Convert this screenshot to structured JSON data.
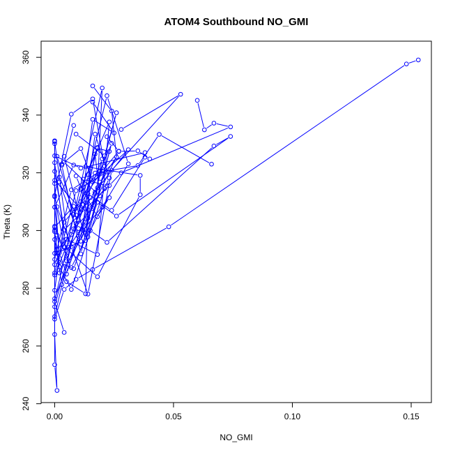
{
  "chart_data": {
    "type": "line",
    "title": "ATOM4 Southbound NO_GMI",
    "xlabel": "NO_GMI",
    "ylabel": "Theta (K)",
    "xlim": [
      -0.0057,
      0.1585
    ],
    "ylim": [
      240.4,
      365.6
    ],
    "xticks": [
      0.0,
      0.05,
      0.1,
      0.15
    ],
    "xtick_labels": [
      "0.00",
      "0.05",
      "0.10",
      "0.15"
    ],
    "yticks": [
      240,
      260,
      280,
      300,
      320,
      340,
      360
    ],
    "ytick_labels": [
      "240",
      "260",
      "280",
      "300",
      "320",
      "340",
      "360"
    ],
    "grid": false,
    "legend": "none",
    "series_color": "#0000ff",
    "marker": "open-circle",
    "series": [
      {
        "x": [
          0.153,
          0.148,
          0.048,
          0.016,
          0.009,
          0.004,
          0.0,
          0.0,
          0.001,
          0.0,
          0.0
        ],
        "y": [
          359.1,
          357.7,
          301.3,
          286.5,
          283.1,
          279.6,
          269.3,
          253.5,
          244.6,
          264.0,
          301.5
        ]
      },
      {
        "x": [
          0.0,
          0.004,
          0.013,
          0.023,
          0.028,
          0.074,
          0.067,
          0.063,
          0.06
        ],
        "y": [
          320.5,
          300.2,
          307.5,
          315.6,
          320.0,
          335.9,
          337.2,
          334.9,
          345.1
        ]
      },
      {
        "x": [
          0.0,
          0.0,
          0.001,
          0.006,
          0.013,
          0.018,
          0.02,
          0.0,
          0.004
        ],
        "y": [
          330.1,
          292.1,
          298.4,
          289.5,
          300.3,
          314.8,
          349.4,
          275.4,
          264.7
        ]
      },
      {
        "x": [
          0.0,
          0.002,
          0.008,
          0.018,
          0.026,
          0.074,
          0.067,
          0.022,
          0.015
        ],
        "y": [
          316.3,
          288.9,
          286.8,
          309.8,
          305.0,
          332.6,
          329.3,
          295.9,
          300.0
        ]
      },
      {
        "x": [
          0.0,
          0.0,
          0.004,
          0.011,
          0.017,
          0.035,
          0.044,
          0.066
        ],
        "y": [
          331.1,
          279.3,
          302.9,
          310.0,
          319.9,
          322.5,
          333.3,
          323.0
        ]
      },
      {
        "x": [
          0.001,
          0.007,
          0.014,
          0.024,
          0.053,
          0.028
        ],
        "y": [
          308.2,
          294.4,
          278.0,
          320.9,
          347.2,
          335.0
        ]
      },
      {
        "x": [
          0.0,
          0.004,
          0.018,
          0.036,
          0.036,
          0.013,
          0.008,
          0.0
        ],
        "y": [
          311.7,
          294.4,
          284.0,
          312.4,
          319.1,
          322.1,
          322.7,
          308.1
        ]
      },
      {
        "x": [
          0.0,
          0.011,
          0.038,
          0.038,
          0.024,
          0.014,
          0.013,
          0.005
        ],
        "y": [
          325.9,
          321.6,
          327.0,
          325.4,
          307.0,
          312.7,
          278.1,
          282.3
        ]
      },
      {
        "x": [
          0.0,
          0.002,
          0.007,
          0.021,
          0.023,
          0.017,
          0.011,
          0.001
        ],
        "y": [
          299.6,
          287.4,
          279.6,
          314.5,
          318.2,
          333.4,
          296.3,
          292.1
        ]
      },
      {
        "x": [
          0.0,
          0.003,
          0.013,
          0.027,
          0.035,
          0.04
        ],
        "y": [
          296.9,
          281.3,
          302.9,
          327.4,
          327.6,
          324.8
        ]
      },
      {
        "x": [
          0.0,
          0.002,
          0.005,
          0.015,
          0.031,
          0.016,
          0.011,
          0.003
        ],
        "y": [
          308.1,
          292.3,
          284.9,
          311.4,
          328.0,
          316.9,
          328.4,
          323.0
        ]
      },
      {
        "x": [
          0.002,
          0.011,
          0.019,
          0.026,
          0.024,
          0.016
        ],
        "y": [
          316.8,
          296.3,
          316.8,
          325.5,
          341.4,
          350.1
        ]
      },
      {
        "x": [
          0.0,
          0.004,
          0.012,
          0.02,
          0.027,
          0.022
        ],
        "y": [
          300.1,
          294.3,
          315.1,
          320.6,
          327.5,
          332.5
        ]
      },
      {
        "x": [
          0.0,
          0.008,
          0.01,
          0.014,
          0.023,
          0.018
        ],
        "y": [
          301.1,
          308.4,
          300.7,
          297.8,
          327.4,
          328.5
        ]
      },
      {
        "x": [
          0.0,
          0.005,
          0.007,
          0.02,
          0.031,
          0.022,
          0.014
        ],
        "y": [
          323.5,
          291.2,
          287.2,
          308.1,
          323.1,
          346.7,
          319.4
        ]
      },
      {
        "x": [
          0.0,
          0.005,
          0.018,
          0.023,
          0.011,
          0.009
        ],
        "y": [
          288.2,
          297.0,
          291.7,
          337.6,
          314.7,
          318.9
        ]
      },
      {
        "x": [
          0.001,
          0.008,
          0.021,
          0.016,
          0.007,
          0.0
        ],
        "y": [
          325.7,
          305.6,
          322.3,
          345.6,
          340.3,
          312.1
        ]
      },
      {
        "x": [
          0.002,
          0.009,
          0.017,
          0.026,
          0.021,
          0.009
        ],
        "y": [
          318.5,
          305.4,
          312.8,
          340.8,
          325.9,
          333.4
        ]
      },
      {
        "x": [
          0.003,
          0.011,
          0.017,
          0.022,
          0.009,
          0.0
        ],
        "y": [
          322.6,
          291.9,
          313.3,
          320.3,
          313.8,
          285.3
        ]
      },
      {
        "x": [
          0.0,
          0.007,
          0.019,
          0.024,
          0.013,
          0.004
        ],
        "y": [
          290.0,
          314.1,
          320.5,
          330.2,
          296.5,
          325.7
        ]
      },
      {
        "x": [
          0.0,
          0.009,
          0.012,
          0.018,
          0.023,
          0.012
        ],
        "y": [
          270.2,
          302.4,
          313.6,
          304.8,
          311.4,
          300.1
        ]
      },
      {
        "x": [
          0.002,
          0.013,
          0.017,
          0.019,
          0.004,
          0.008
        ],
        "y": [
          285.3,
          309.6,
          326.5,
          312.0,
          323.7,
          336.4
        ]
      },
      {
        "x": [
          0.0,
          0.005,
          0.015,
          0.014,
          0.006,
          0.0
        ],
        "y": [
          273.6,
          289.5,
          321.6,
          304.3,
          294.2,
          330.8
        ]
      },
      {
        "x": [
          0.0,
          0.011,
          0.016,
          0.025,
          0.016
        ],
        "y": [
          317.4,
          307.4,
          338.5,
          333.8,
          344.5
        ]
      },
      {
        "x": [
          0.0,
          0.008,
          0.016,
          0.02,
          0.01
        ],
        "y": [
          284.6,
          300.6,
          307.6,
          324.8,
          303.7
        ]
      },
      {
        "x": [
          0.001,
          0.007,
          0.012,
          0.018,
          0.011
        ],
        "y": [
          293.4,
          298.6,
          309.0,
          328.8,
          314.1
        ]
      },
      {
        "x": [
          0.0,
          0.01,
          0.014,
          0.022,
          0.012
        ],
        "y": [
          276.4,
          298.0,
          307.2,
          315.5,
          317.8
        ]
      }
    ]
  }
}
